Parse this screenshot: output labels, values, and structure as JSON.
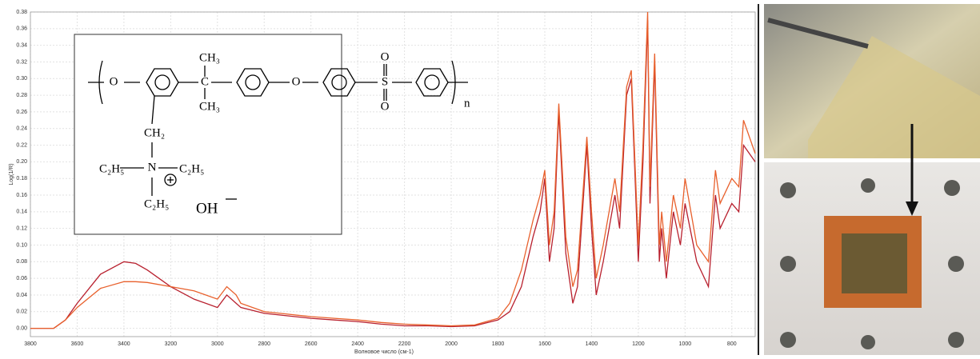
{
  "chart_data": {
    "type": "line",
    "y_label": "Log(1/R)",
    "x_label": "Волновое число (см-1)",
    "x": [
      3800,
      3700,
      3650,
      3600,
      3500,
      3400,
      3350,
      3300,
      3200,
      3100,
      3000,
      2960,
      2920,
      2900,
      2800,
      2700,
      2600,
      2500,
      2400,
      2300,
      2200,
      2100,
      2000,
      1900,
      1800,
      1750,
      1700,
      1650,
      1620,
      1600,
      1580,
      1560,
      1540,
      1510,
      1480,
      1460,
      1420,
      1400,
      1380,
      1350,
      1300,
      1280,
      1250,
      1230,
      1200,
      1180,
      1160,
      1150,
      1130,
      1110,
      1100,
      1080,
      1050,
      1020,
      1000,
      950,
      900,
      870,
      850,
      800,
      770,
      750,
      700
    ],
    "series": [
      {
        "color": "#b8202e",
        "values": [
          0,
          0,
          0.01,
          0.03,
          0.065,
          0.08,
          0.078,
          0.07,
          0.05,
          0.035,
          0.025,
          0.04,
          0.03,
          0.025,
          0.018,
          0.015,
          0.012,
          0.01,
          0.008,
          0.005,
          0.003,
          0.003,
          0.002,
          0.003,
          0.01,
          0.02,
          0.05,
          0.11,
          0.14,
          0.18,
          0.08,
          0.12,
          0.26,
          0.09,
          0.03,
          0.05,
          0.22,
          0.12,
          0.04,
          0.08,
          0.16,
          0.12,
          0.28,
          0.3,
          0.08,
          0.2,
          0.37,
          0.15,
          0.32,
          0.08,
          0.12,
          0.06,
          0.14,
          0.1,
          0.15,
          0.08,
          0.05,
          0.16,
          0.12,
          0.15,
          0.14,
          0.22,
          0.2
        ]
      },
      {
        "color": "#e8602c",
        "values": [
          0,
          0,
          0.01,
          0.025,
          0.048,
          0.056,
          0.056,
          0.055,
          0.05,
          0.045,
          0.035,
          0.05,
          0.04,
          0.03,
          0.02,
          0.017,
          0.014,
          0.012,
          0.01,
          0.007,
          0.005,
          0.004,
          0.003,
          0.004,
          0.012,
          0.03,
          0.07,
          0.13,
          0.16,
          0.19,
          0.1,
          0.14,
          0.27,
          0.11,
          0.05,
          0.07,
          0.23,
          0.14,
          0.06,
          0.1,
          0.18,
          0.14,
          0.29,
          0.31,
          0.1,
          0.22,
          0.38,
          0.17,
          0.33,
          0.1,
          0.14,
          0.08,
          0.16,
          0.12,
          0.18,
          0.1,
          0.08,
          0.19,
          0.15,
          0.18,
          0.17,
          0.25,
          0.21
        ]
      }
    ],
    "xlim": [
      3800,
      700
    ],
    "xticks": [
      3800,
      3600,
      3400,
      3200,
      3000,
      2800,
      2600,
      2400,
      2200,
      2000,
      1800,
      1600,
      1400,
      1200,
      1000,
      800
    ],
    "ylim": [
      -0.01,
      0.38
    ],
    "yticks": [
      {
        "value": 0,
        "label": "0.00"
      },
      0.02,
      0.04,
      0.06,
      0.08,
      {
        "value": 0.1,
        "label": "0.10"
      },
      0.12,
      0.14,
      0.16,
      0.18,
      {
        "value": 0.2,
        "label": "0.20"
      },
      0.22,
      0.24,
      0.26,
      0.28,
      {
        "value": 0.3,
        "label": "0.30"
      },
      0.32,
      0.34,
      0.36,
      0.38
    ],
    "grid": true
  },
  "inset": {
    "methyl_top": "CH₃",
    "methyl_bottom": "CH₃",
    "ether_1": "O",
    "ether_2": "O",
    "sulfonyl_s": "S",
    "sulfonyl_o_top": "O",
    "sulfonyl_o_bottom": "O",
    "repeat": "n",
    "methylene": "CH₂",
    "nitrogen": "N",
    "ethyl_left": "C₂H₅",
    "ethyl_right": "C₂H₅",
    "ethyl_bottom": "C₂H₅",
    "hydroxide": "OH"
  }
}
